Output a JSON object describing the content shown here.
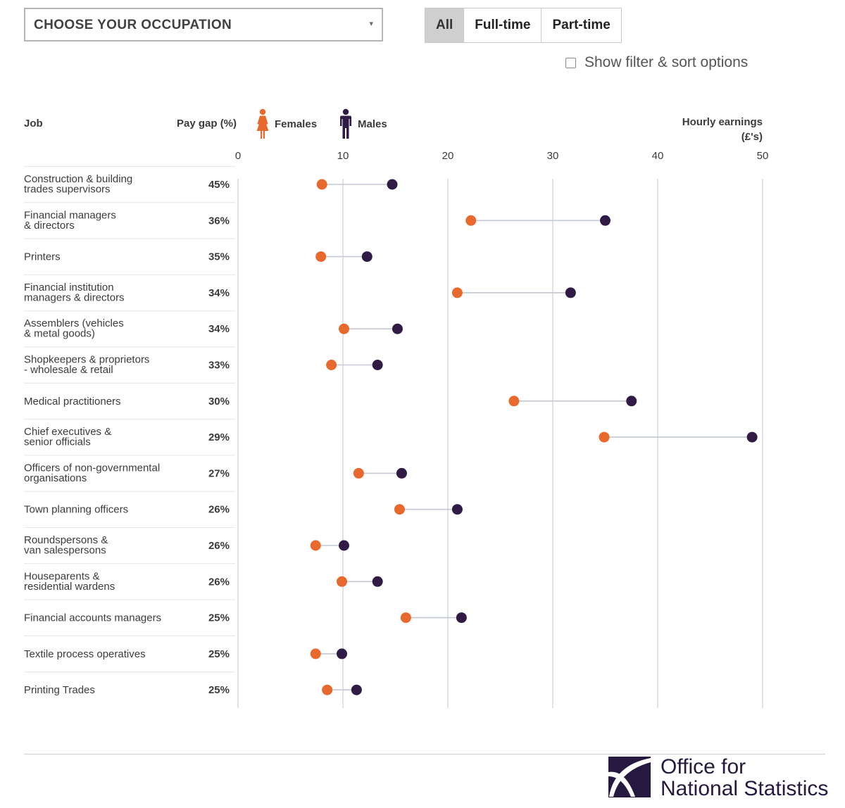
{
  "controls": {
    "occupation_select": "CHOOSE YOUR OCCUPATION",
    "occupation_caret": "▾",
    "filters": [
      {
        "label": "All",
        "active": true
      },
      {
        "label": "Full-time",
        "active": false
      },
      {
        "label": "Part-time",
        "active": false
      }
    ],
    "show_options_label": "Show filter & sort options",
    "show_options_checked": false
  },
  "headers": {
    "job": "Job",
    "pay_gap": "Pay gap (%)",
    "earnings_line1": "Hourly earnings",
    "earnings_line2": "(£'s)"
  },
  "legend": {
    "female": "Females",
    "male": "Males"
  },
  "colors": {
    "female": "#e8692e",
    "male": "#2f1b46",
    "connector": "#c3cad4",
    "gridline": "#cfcfcf"
  },
  "chart_data": {
    "type": "dumbbell",
    "x_range": [
      0,
      50
    ],
    "x_ticks": [
      0,
      10,
      20,
      30,
      40,
      50
    ],
    "series": [
      {
        "name": "Females",
        "key": "female"
      },
      {
        "name": "Males",
        "key": "male"
      }
    ],
    "rows": [
      {
        "job": [
          "Construction & building",
          "trades supervisors"
        ],
        "gap": "45%",
        "female": 8.0,
        "male": 14.7
      },
      {
        "job": [
          "Financial managers",
          "& directors"
        ],
        "gap": "36%",
        "female": 22.2,
        "male": 35.0
      },
      {
        "job": [
          "Printers"
        ],
        "gap": "35%",
        "female": 7.9,
        "male": 12.3
      },
      {
        "job": [
          "Financial institution",
          "managers & directors"
        ],
        "gap": "34%",
        "female": 20.9,
        "male": 31.7
      },
      {
        "job": [
          "Assemblers (vehicles",
          "& metal goods)"
        ],
        "gap": "34%",
        "female": 10.1,
        "male": 15.2
      },
      {
        "job": [
          "Shopkeepers & proprietors",
          "- wholesale & retail"
        ],
        "gap": "33%",
        "female": 8.9,
        "male": 13.3
      },
      {
        "job": [
          "Medical practitioners"
        ],
        "gap": "30%",
        "female": 26.3,
        "male": 37.5
      },
      {
        "job": [
          "Chief executives &",
          "senior officials"
        ],
        "gap": "29%",
        "female": 34.9,
        "male": 49.0
      },
      {
        "job": [
          "Officers of non-governmental",
          "organisations"
        ],
        "gap": "27%",
        "female": 11.5,
        "male": 15.6
      },
      {
        "job": [
          "Town planning officers"
        ],
        "gap": "26%",
        "female": 15.4,
        "male": 20.9
      },
      {
        "job": [
          "Roundspersons &",
          "van salespersons"
        ],
        "gap": "26%",
        "female": 7.4,
        "male": 10.1
      },
      {
        "job": [
          "Houseparents &",
          "residential wardens"
        ],
        "gap": "26%",
        "female": 9.9,
        "male": 13.3
      },
      {
        "job": [
          "Financial accounts managers"
        ],
        "gap": "25%",
        "female": 16.0,
        "male": 21.3
      },
      {
        "job": [
          "Textile process operatives"
        ],
        "gap": "25%",
        "female": 7.4,
        "male": 9.9
      },
      {
        "job": [
          "Printing Trades"
        ],
        "gap": "25%",
        "female": 8.5,
        "male": 11.3
      }
    ]
  },
  "footer": {
    "logo_line1": "Office for",
    "logo_line2": "National Statistics"
  }
}
